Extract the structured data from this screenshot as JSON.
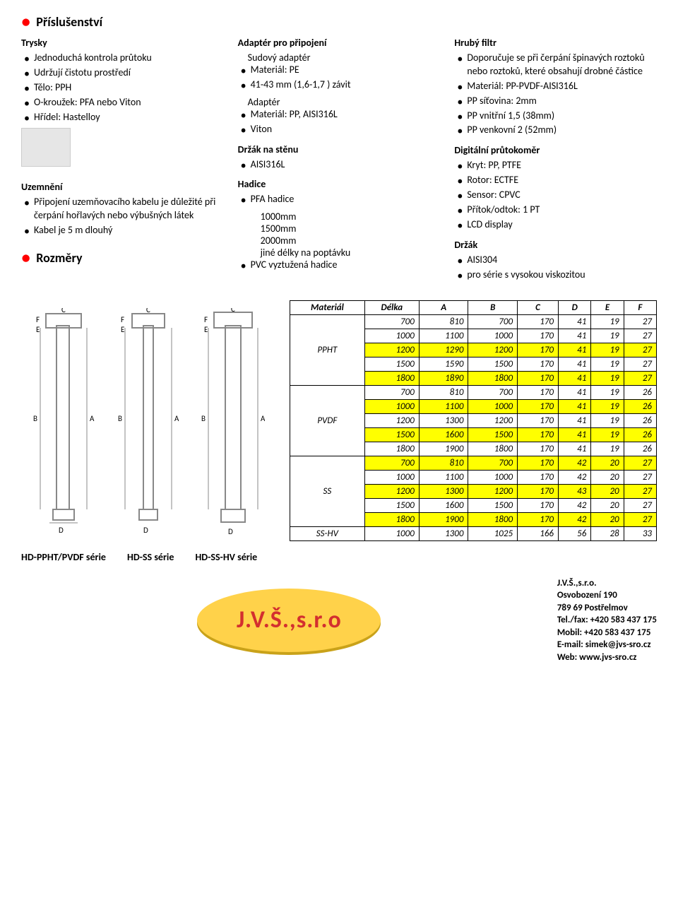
{
  "heading_accessories": "Příslušenství",
  "heading_dimensions": "Rozměry",
  "col_left": {
    "spray": {
      "title": "Trysky",
      "items": [
        "Jednoduchá kontrola průtoku",
        "Udržují čistotu prostředí",
        "Tělo: PPH",
        "O-kroužek: PFA nebo Viton",
        "Hřídel: Hastelloy"
      ]
    },
    "ground": {
      "title": "Uzemnění",
      "items": [
        "Připojení uzemňovacího kabelu je důležité při čerpání hořlavých nebo výbušných látek",
        "Kabel je 5 m dlouhý"
      ]
    }
  },
  "col_mid": {
    "adapter_conn": {
      "title": "Adaptér pro připojení",
      "sub1": "Sudový adaptér",
      "items1": [
        "Materiál: PE",
        "41-43 mm (1,6-1,7 ) závit"
      ],
      "sub2": "Adaptér",
      "items2": [
        "Materiál: PP, AISI316L",
        "Viton"
      ]
    },
    "wall_holder": {
      "title": "Držák na stěnu",
      "items": [
        "AISI316L"
      ]
    },
    "hose": {
      "title": "Hadice",
      "items": [
        "PFA hadice",
        "1000mm",
        "1500mm",
        "2000mm",
        "jiné délky na poptávku",
        "PVC vyztužená hadice"
      ]
    }
  },
  "col_right": {
    "filter": {
      "title": "Hrubý filtr",
      "items": [
        "Doporučuje se při čerpání špinavých roztoků nebo roztoků, které obsahují drobné částice",
        "Materiál: PP-PVDF-AISI316L",
        "PP síťovina: 2mm",
        "PP vnitřní 1,5 (38mm)",
        "PP venkovní 2 (52mm)"
      ]
    },
    "flowmeter": {
      "title": "Digitální průtokoměr",
      "items": [
        "Kryt: PP, PTFE",
        "Rotor: ECTFE",
        "Sensor: CPVC",
        "Přítok/odtok: 1 PT",
        "LCD display"
      ]
    },
    "holder": {
      "title": "Držák",
      "items": [
        "AISI304",
        "pro série s vysokou viskozitou"
      ]
    }
  },
  "table": {
    "headers": [
      "Materiál",
      "Délka",
      "A",
      "B",
      "C",
      "D",
      "E",
      "F"
    ],
    "groups": [
      {
        "mat": "PPHT",
        "rows": [
          {
            "y": false,
            "v": [
              700,
              810,
              700,
              170,
              41,
              19,
              27
            ]
          },
          {
            "y": false,
            "v": [
              1000,
              1100,
              1000,
              170,
              41,
              19,
              27
            ]
          },
          {
            "y": true,
            "v": [
              1200,
              1290,
              1200,
              170,
              41,
              19,
              27
            ]
          },
          {
            "y": false,
            "v": [
              1500,
              1590,
              1500,
              170,
              41,
              19,
              27
            ]
          },
          {
            "y": true,
            "v": [
              1800,
              1890,
              1800,
              170,
              41,
              19,
              27
            ]
          }
        ]
      },
      {
        "mat": "PVDF",
        "rows": [
          {
            "y": false,
            "v": [
              700,
              810,
              700,
              170,
              41,
              19,
              26
            ]
          },
          {
            "y": true,
            "v": [
              1000,
              1100,
              1000,
              170,
              41,
              19,
              26
            ]
          },
          {
            "y": false,
            "v": [
              1200,
              1300,
              1200,
              170,
              41,
              19,
              26
            ]
          },
          {
            "y": true,
            "v": [
              1500,
              1600,
              1500,
              170,
              41,
              19,
              26
            ]
          },
          {
            "y": false,
            "v": [
              1800,
              1900,
              1800,
              170,
              41,
              19,
              26
            ]
          }
        ]
      },
      {
        "mat": "SS",
        "rows": [
          {
            "y": true,
            "v": [
              700,
              810,
              700,
              170,
              42,
              20,
              27
            ]
          },
          {
            "y": false,
            "v": [
              1000,
              1100,
              1000,
              170,
              42,
              20,
              27
            ]
          },
          {
            "y": true,
            "v": [
              1200,
              1300,
              1200,
              170,
              43,
              20,
              27
            ]
          },
          {
            "y": false,
            "v": [
              1500,
              1600,
              1500,
              170,
              42,
              20,
              27
            ]
          },
          {
            "y": true,
            "v": [
              1800,
              1900,
              1800,
              170,
              42,
              20,
              27
            ]
          }
        ]
      },
      {
        "mat": "SS-HV",
        "rows": [
          {
            "y": false,
            "v": [
              1000,
              1300,
              1025,
              166,
              56,
              28,
              33
            ]
          }
        ]
      }
    ]
  },
  "series": [
    "HD-PPHT/PVDF série",
    "HD-SS série",
    "HD-SS-HV série"
  ],
  "footer": {
    "logo": "J.V.Š.,s.r.o",
    "lines": [
      "J.V.Š.,s.r.o.",
      "Osvobození 190",
      "789 69 Postřelmov",
      "Tel./fax: +420 583 437 175",
      "Mobil: +420 583 437 175",
      "E-mail: simek@jvs-sro.cz",
      "Web: www.jvs-sro.cz"
    ]
  },
  "diagram_labels": [
    "C",
    "F",
    "E",
    "B",
    "A",
    "D"
  ]
}
